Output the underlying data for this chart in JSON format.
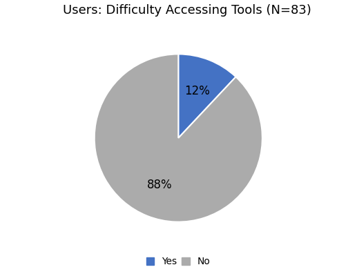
{
  "title": "Users: Difficulty Accessing Tools (N=83)",
  "slices": [
    12,
    88
  ],
  "labels": [
    "Yes",
    "No"
  ],
  "colors": [
    "#4472C4",
    "#ABABAB"
  ],
  "autopct_values": [
    "12%",
    "88%"
  ],
  "startangle": 90,
  "title_fontsize": 13,
  "pct_fontsize": 12,
  "legend_fontsize": 10,
  "background_color": "#FFFFFF"
}
